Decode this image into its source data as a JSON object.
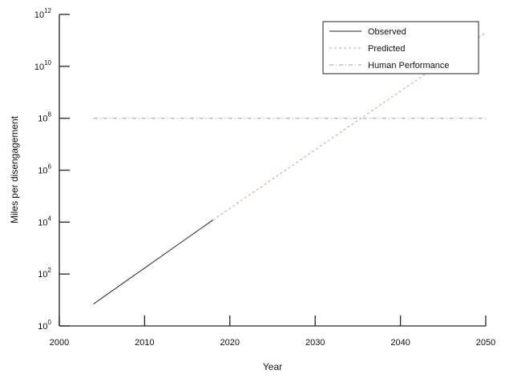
{
  "chart_data": {
    "type": "line",
    "title": "",
    "xlabel": "Year",
    "ylabel": "Miles per disengagement",
    "xlim": [
      2000,
      2050
    ],
    "ylim": [
      1,
      1000000000000
    ],
    "y_scale": "log10",
    "x_ticks": [
      2000,
      2010,
      2020,
      2030,
      2040,
      2050
    ],
    "x_tick_labels": [
      "2000",
      "2010",
      "2020",
      "2030",
      "2040",
      "2050"
    ],
    "y_tick_exponents": [
      0,
      2,
      4,
      6,
      8,
      10,
      12
    ],
    "y_tick_base": "10",
    "grid": false,
    "legend": {
      "position": "top-right"
    },
    "series": [
      {
        "name": "Observed",
        "style": "solid",
        "color": "#222222",
        "x": [
          2004,
          2018
        ],
        "y": [
          7,
          12000
        ]
      },
      {
        "name": "Predicted",
        "style": "dashed",
        "color": "#d2a07a",
        "x": [
          2018,
          2050
        ],
        "y": [
          12000,
          200000000000
        ]
      },
      {
        "name": "Human Performance",
        "style": "dash-dot",
        "color": "#9a9a9a",
        "x": [
          2004,
          2050
        ],
        "y": [
          100000000,
          100000000
        ]
      }
    ]
  }
}
